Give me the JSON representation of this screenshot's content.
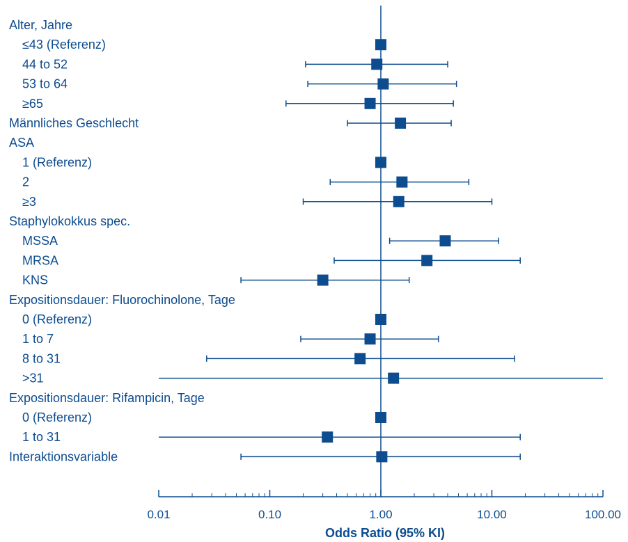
{
  "chart_data": {
    "type": "forest",
    "xlabel": "Odds Ratio (95% KI)",
    "xscale": "log",
    "xlim": [
      0.01,
      100
    ],
    "reference_line": 1,
    "xticks": [
      {
        "value": 0.01,
        "label": "0.01"
      },
      {
        "value": 0.1,
        "label": "0.10"
      },
      {
        "value": 1,
        "label": "1.00"
      },
      {
        "value": 10,
        "label": "10.00"
      },
      {
        "value": 100,
        "label": "100.00"
      }
    ],
    "colors": {
      "marker": "#0d4c8f",
      "line": "#0d4c8f",
      "text": "#0d4c8f"
    },
    "rows": [
      {
        "label": "Alter, Jahre",
        "indent": false
      },
      {
        "label": "≤43 (Referenz)",
        "indent": true,
        "or": 1.0
      },
      {
        "label": "44 to 52",
        "indent": true,
        "or": 0.92,
        "lo": 0.21,
        "hi": 4.0
      },
      {
        "label": "53 to 64",
        "indent": true,
        "or": 1.05,
        "lo": 0.22,
        "hi": 4.8
      },
      {
        "label": "≥65",
        "indent": true,
        "or": 0.8,
        "lo": 0.14,
        "hi": 4.5
      },
      {
        "label": "Männliches Geschlecht",
        "indent": false,
        "or": 1.5,
        "lo": 0.5,
        "hi": 4.3
      },
      {
        "label": "ASA",
        "indent": false
      },
      {
        "label": "1 (Referenz)",
        "indent": true,
        "or": 1.0
      },
      {
        "label": "2",
        "indent": true,
        "or": 1.55,
        "lo": 0.35,
        "hi": 6.2
      },
      {
        "label": "≥3",
        "indent": true,
        "or": 1.45,
        "lo": 0.2,
        "hi": 10.0
      },
      {
        "label": "Staphylokokkus spec.",
        "indent": false
      },
      {
        "label": "MSSA",
        "indent": true,
        "or": 3.8,
        "lo": 1.2,
        "hi": 11.5
      },
      {
        "label": "MRSA",
        "indent": true,
        "or": 2.6,
        "lo": 0.38,
        "hi": 18.0
      },
      {
        "label": "KNS",
        "indent": true,
        "or": 0.3,
        "lo": 0.055,
        "hi": 1.8
      },
      {
        "label": "Expositionsdauer: Fluorochinolone, Tage",
        "indent": false
      },
      {
        "label": "0 (Referenz)",
        "indent": true,
        "or": 1.0
      },
      {
        "label": "1 to 7",
        "indent": true,
        "or": 0.8,
        "lo": 0.19,
        "hi": 3.3
      },
      {
        "label": "8 to 31",
        "indent": true,
        "or": 0.65,
        "lo": 0.027,
        "hi": 16.0
      },
      {
        "label": ">31",
        "indent": true,
        "or": 1.3,
        "lo": 0.01,
        "hi": 100
      },
      {
        "label": "Expositionsdauer: Rifampicin, Tage",
        "indent": false
      },
      {
        "label": "0 (Referenz)",
        "indent": true,
        "or": 1.0
      },
      {
        "label": "1  to 31",
        "indent": true,
        "or": 0.33,
        "lo": 0.01,
        "hi": 18.0
      },
      {
        "label": "Interaktionsvariable",
        "indent": false,
        "or": 1.02,
        "lo": 0.055,
        "hi": 18.0
      }
    ]
  }
}
